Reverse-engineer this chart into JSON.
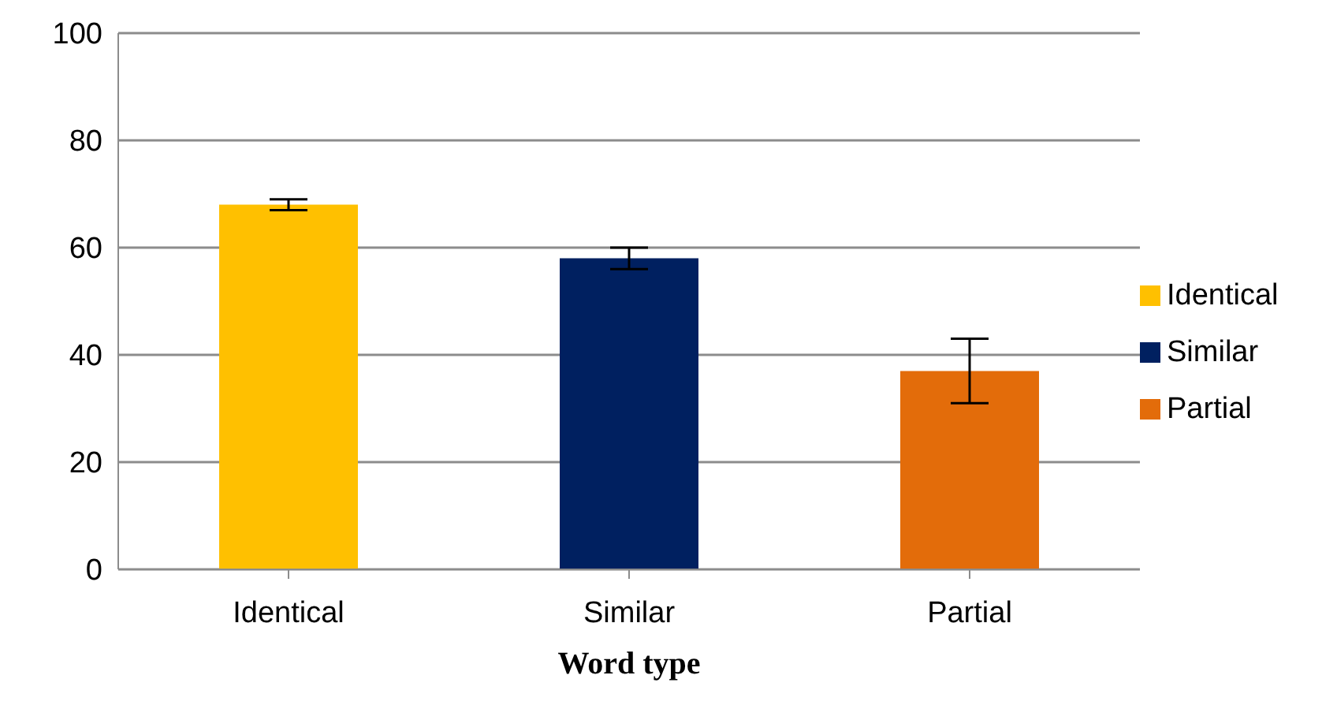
{
  "chart_data": {
    "type": "bar",
    "xlabel": "Word type",
    "stacked": true,
    "categories": [
      "Identical",
      "Similar",
      "Partial"
    ],
    "series": [
      {
        "name": "Identical",
        "color": "#ffc000",
        "values": [
          68,
          null,
          null
        ],
        "errors": [
          1,
          null,
          null
        ]
      },
      {
        "name": "Similar",
        "color": "#002060",
        "values": [
          null,
          58,
          null
        ],
        "errors": [
          null,
          2,
          null
        ]
      },
      {
        "name": "Partial",
        "color": "#e36c0a",
        "values": [
          null,
          null,
          37
        ],
        "errors": [
          null,
          null,
          6
        ]
      }
    ],
    "ylim": [
      0,
      100
    ],
    "yticks": [
      0,
      20,
      40,
      60,
      80,
      100
    ],
    "grid": "y",
    "legend": "right"
  }
}
